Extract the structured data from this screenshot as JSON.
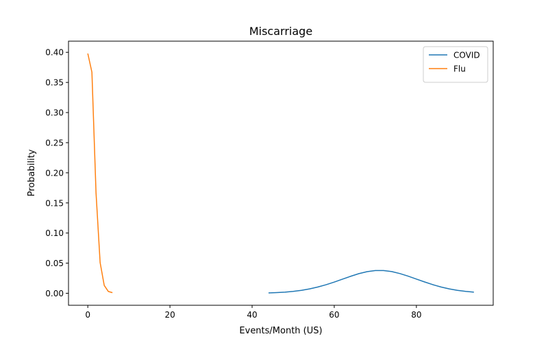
{
  "chart_data": {
    "type": "line",
    "title": "Miscarriage",
    "xlabel": "Events/Month (US)",
    "ylabel": "Probability",
    "xlim": [
      -4.7,
      98.7
    ],
    "ylim": [
      -0.0199,
      0.4185
    ],
    "xticks": [
      0,
      20,
      40,
      60,
      80
    ],
    "yticks": [
      0.0,
      0.05,
      0.1,
      0.15,
      0.2,
      0.25,
      0.3,
      0.35,
      0.4
    ],
    "xtick_labels": [
      "0",
      "20",
      "40",
      "60",
      "80"
    ],
    "ytick_labels": [
      "0.00",
      "0.05",
      "0.10",
      "0.15",
      "0.20",
      "0.25",
      "0.30",
      "0.35",
      "0.40"
    ],
    "grid": false,
    "legend_position": "top-right",
    "series": [
      {
        "name": "COVID",
        "color": "#1f77b4",
        "x": [
          44,
          46,
          48,
          50,
          52,
          54,
          56,
          58,
          60,
          62,
          64,
          66,
          68,
          70,
          72,
          74,
          76,
          78,
          80,
          82,
          84,
          86,
          88,
          90,
          92,
          94
        ],
        "y": [
          0.0006,
          0.0011,
          0.0019,
          0.0031,
          0.0049,
          0.0073,
          0.0104,
          0.0142,
          0.0186,
          0.0234,
          0.0282,
          0.0326,
          0.0359,
          0.0377,
          0.0377,
          0.036,
          0.0327,
          0.0284,
          0.0236,
          0.0188,
          0.0143,
          0.0104,
          0.0073,
          0.0049,
          0.0031,
          0.0019
        ]
      },
      {
        "name": "Flu",
        "color": "#ff7f0e",
        "x": [
          0,
          1,
          2,
          3,
          4,
          5,
          6
        ],
        "y": [
          0.398,
          0.367,
          0.167,
          0.051,
          0.013,
          0.003,
          0.001
        ]
      }
    ]
  }
}
